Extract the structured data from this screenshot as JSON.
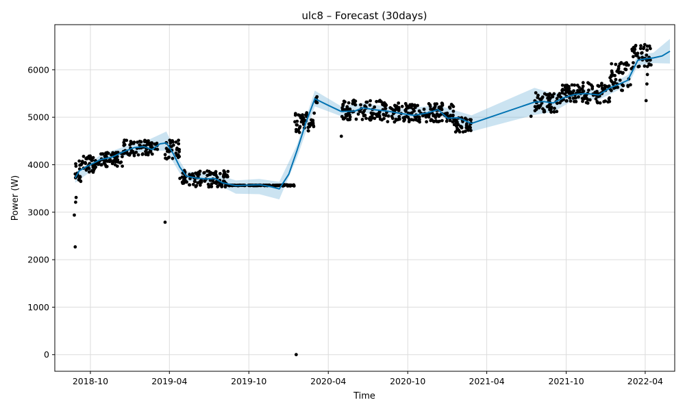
{
  "chart_data": {
    "type": "line",
    "title": "ulc8 – Forecast (30days)",
    "xlabel": "Time",
    "ylabel": "Power (W)",
    "x_tick_labels": [
      "2018-10",
      "2019-04",
      "2019-10",
      "2020-04",
      "2020-10",
      "2021-04",
      "2021-10",
      "2022-04"
    ],
    "y_tick_labels": [
      "0",
      "1000",
      "2000",
      "3000",
      "4000",
      "5000",
      "6000"
    ],
    "x_range": [
      "2018-07-11",
      "2022-06-08"
    ],
    "ylim": [
      -350,
      6950
    ],
    "grid": true,
    "colors": {
      "forecast_line": "#0072b2",
      "uncertainty_band": "#6baed6",
      "observed_points": "#000000",
      "grid": "#dcdcdc"
    },
    "series": [
      {
        "style": "line",
        "points": [
          [
            "2018-08-27",
            3720
          ],
          [
            "2018-09-05",
            3870
          ],
          [
            "2018-09-20",
            3950
          ],
          [
            "2018-10-05",
            4020
          ],
          [
            "2018-10-25",
            4110
          ],
          [
            "2018-11-20",
            4160
          ],
          [
            "2018-12-15",
            4270
          ],
          [
            "2019-01-10",
            4360
          ],
          [
            "2019-02-01",
            4380
          ],
          [
            "2019-02-20",
            4320
          ],
          [
            "2019-03-10",
            4440
          ],
          [
            "2019-03-25",
            4460
          ],
          [
            "2019-04-10",
            4230
          ],
          [
            "2019-04-25",
            3950
          ],
          [
            "2019-05-10",
            3760
          ],
          [
            "2019-06-01",
            3720
          ],
          [
            "2019-06-25",
            3700
          ],
          [
            "2019-07-15",
            3710
          ],
          [
            "2019-08-01",
            3620
          ],
          [
            "2019-09-01",
            3560
          ],
          [
            "2019-10-01",
            3570
          ],
          [
            "2019-10-25",
            3580
          ],
          [
            "2019-11-20",
            3540
          ],
          [
            "2019-12-10",
            3490
          ],
          [
            "2020-01-01",
            3800
          ],
          [
            "2020-01-20",
            4300
          ],
          [
            "2020-02-10",
            4900
          ],
          [
            "2020-03-01",
            5390
          ],
          [
            "2020-04-01",
            5250
          ],
          [
            "2020-05-01",
            5120
          ],
          [
            "2020-06-01",
            5130
          ],
          [
            "2020-06-20",
            5200
          ],
          [
            "2020-07-15",
            5160
          ],
          [
            "2020-08-15",
            5130
          ],
          [
            "2020-09-15",
            5080
          ],
          [
            "2020-10-15",
            5040
          ],
          [
            "2020-11-15",
            5090
          ],
          [
            "2020-12-10",
            5160
          ],
          [
            "2021-01-01",
            4980
          ],
          [
            "2021-01-25",
            4990
          ],
          [
            "2021-02-25",
            4870
          ],
          [
            "2021-07-20",
            5320
          ],
          [
            "2021-08-10",
            5330
          ],
          [
            "2021-09-01",
            5300
          ],
          [
            "2021-09-25",
            5410
          ],
          [
            "2021-10-20",
            5480
          ],
          [
            "2021-11-15",
            5500
          ],
          [
            "2021-12-15",
            5470
          ],
          [
            "2022-01-10",
            5620
          ],
          [
            "2022-02-01",
            5700
          ],
          [
            "2022-02-20",
            5780
          ],
          [
            "2022-03-15",
            6200
          ],
          [
            "2022-04-01",
            6230
          ],
          [
            "2022-04-20",
            6250
          ],
          [
            "2022-05-10",
            6290
          ],
          [
            "2022-05-28",
            6390
          ]
        ]
      },
      {
        "style": "band",
        "x": [
          "2018-08-27",
          "2018-10-25",
          "2018-12-15",
          "2019-02-01",
          "2019-03-25",
          "2019-04-25",
          "2019-05-10",
          "2019-07-15",
          "2019-09-01",
          "2019-10-25",
          "2019-12-10",
          "2020-01-20",
          "2020-03-01",
          "2020-05-01",
          "2020-06-20",
          "2020-09-15",
          "2020-12-10",
          "2021-02-25",
          "2021-07-20",
          "2021-09-01",
          "2021-10-20",
          "2021-12-15",
          "2022-02-20",
          "2022-03-15",
          "2022-04-20",
          "2022-05-28"
        ],
        "upper": [
          3820,
          4210,
          4370,
          4480,
          4700,
          4080,
          3860,
          3810,
          3670,
          3700,
          3640,
          4420,
          5560,
          5230,
          5300,
          5180,
          5250,
          5040,
          5620,
          5500,
          5590,
          5580,
          5890,
          6310,
          6360,
          6650
        ],
        "lower": [
          3620,
          4010,
          4170,
          4280,
          4300,
          3820,
          3660,
          3610,
          3390,
          3380,
          3270,
          4150,
          5230,
          5020,
          5100,
          4980,
          5050,
          4700,
          5050,
          5110,
          5370,
          5370,
          5670,
          6090,
          6140,
          6130
        ]
      },
      {
        "style": "scatter",
        "clusters": [
          {
            "x0": "2018-08-25",
            "x1": "2018-09-12",
            "ymin": 3560,
            "ymax": 4080
          },
          {
            "x0": "2018-09-12",
            "x1": "2018-10-20",
            "ymin": 3840,
            "ymax": 4200
          },
          {
            "x0": "2018-10-20",
            "x1": "2018-12-15",
            "ymin": 3960,
            "ymax": 4260
          },
          {
            "x0": "2018-12-15",
            "x1": "2019-03-05",
            "ymin": 4190,
            "ymax": 4520
          },
          {
            "x0": "2019-03-20",
            "x1": "2019-04-25",
            "ymin": 4120,
            "ymax": 4530
          },
          {
            "x0": "2019-04-25",
            "x1": "2019-05-10",
            "ymin": 3600,
            "ymax": 3900
          },
          {
            "x0": "2019-05-10",
            "x1": "2019-08-15",
            "ymin": 3530,
            "ymax": 3870
          },
          {
            "x0": "2019-08-15",
            "x1": "2019-12-15",
            "ymin": 3560,
            "ymax": 3570
          },
          {
            "x0": "2019-12-15",
            "x1": "2020-01-15",
            "ymin": 3550,
            "ymax": 3580
          },
          {
            "x0": "2020-01-15",
            "x1": "2020-03-01",
            "ymin": 4680,
            "ymax": 5110
          },
          {
            "x0": "2020-03-01",
            "x1": "2020-03-07",
            "ymin": 5300,
            "ymax": 5450
          },
          {
            "x0": "2020-05-01",
            "x1": "2020-08-15",
            "ymin": 4940,
            "ymax": 5360
          },
          {
            "x0": "2020-08-15",
            "x1": "2021-01-15",
            "ymin": 4900,
            "ymax": 5300
          },
          {
            "x0": "2021-01-15",
            "x1": "2021-02-25",
            "ymin": 4690,
            "ymax": 5000
          },
          {
            "x0": "2021-07-20",
            "x1": "2021-09-20",
            "ymin": 5100,
            "ymax": 5520
          },
          {
            "x0": "2021-09-20",
            "x1": "2022-01-10",
            "ymin": 5290,
            "ymax": 5730
          },
          {
            "x0": "2022-01-10",
            "x1": "2022-03-01",
            "ymin": 5560,
            "ymax": 6150
          },
          {
            "x0": "2022-03-01",
            "x1": "2022-04-15",
            "ymin": 6050,
            "ymax": 6530
          }
        ],
        "outliers": [
          [
            "2018-08-25",
            2940
          ],
          [
            "2018-08-27",
            2270
          ],
          [
            "2018-08-28",
            3210
          ],
          [
            "2018-08-29",
            3310
          ],
          [
            "2019-03-22",
            2790
          ],
          [
            "2020-01-18",
            0
          ],
          [
            "2020-01-18",
            4700
          ],
          [
            "2020-05-01",
            4600
          ],
          [
            "2021-07-12",
            5020
          ],
          [
            "2022-04-03",
            5350
          ],
          [
            "2022-04-05",
            5700
          ],
          [
            "2022-04-06",
            5900
          ]
        ]
      }
    ]
  }
}
